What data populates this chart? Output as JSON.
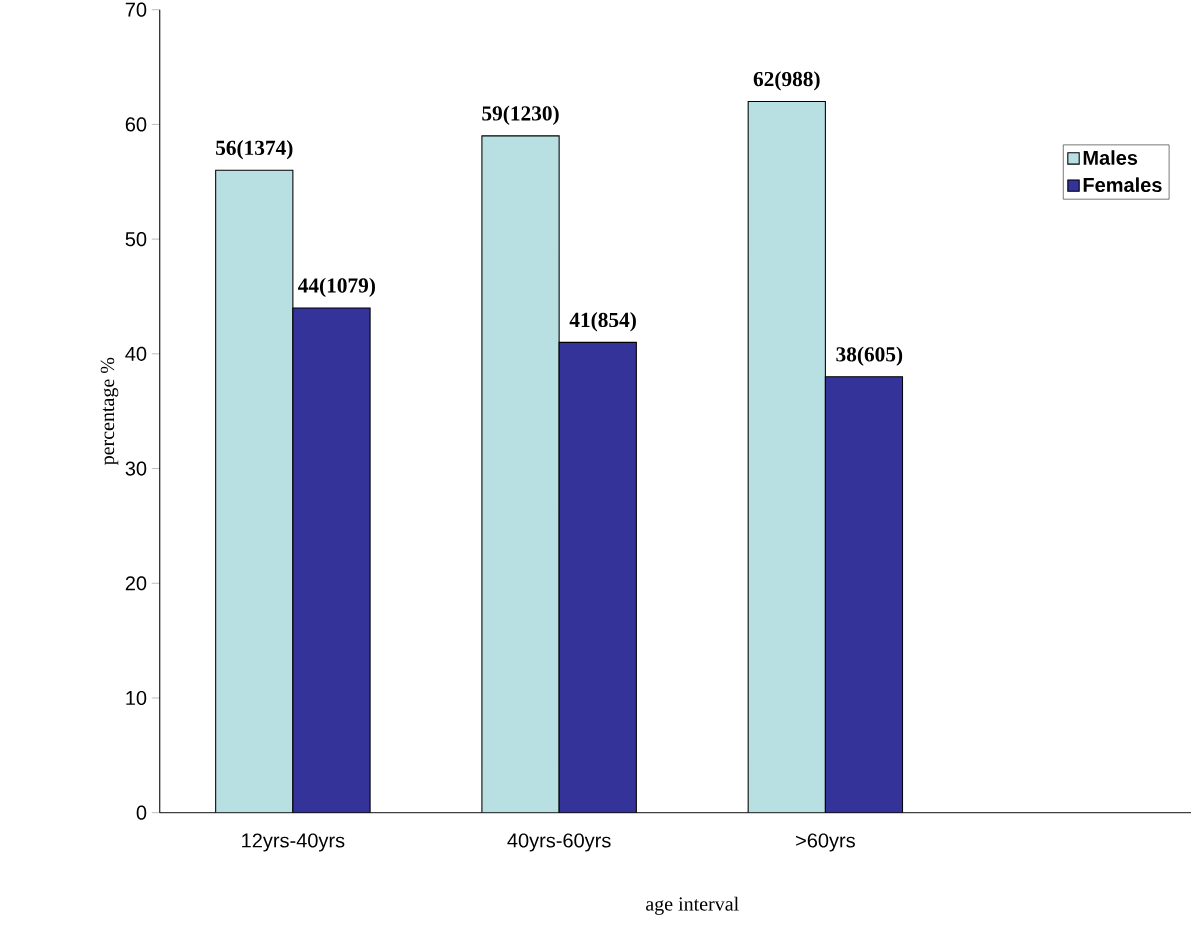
{
  "chart_data": {
    "type": "bar",
    "xlabel": "age interval",
    "ylabel": "percentage %",
    "categories": [
      "12yrs-40yrs",
      "40yrs-60yrs",
      ">60yrs",
      null
    ],
    "series": [
      {
        "name": "Males",
        "color": "#b8e0e2",
        "values": [
          56,
          59,
          62,
          null
        ],
        "value_labels": [
          "56(1374)",
          "59(1230)",
          "62(988)",
          null
        ]
      },
      {
        "name": "Females",
        "color": "#333399",
        "values": [
          44,
          41,
          38,
          null
        ],
        "value_labels": [
          "44(1079)",
          "41(854)",
          "38(605)",
          null
        ]
      }
    ],
    "ylim": [
      0,
      70
    ],
    "yticks": [
      0,
      10,
      20,
      30,
      40,
      50,
      60,
      70
    ],
    "grid": false,
    "legend": "top right"
  }
}
